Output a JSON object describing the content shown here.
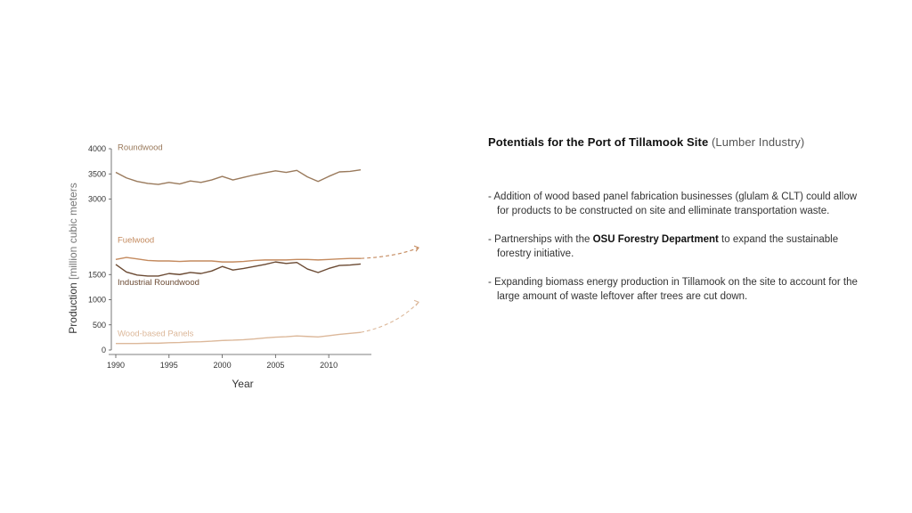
{
  "chart_data": {
    "type": "line",
    "title": "",
    "xlabel": "Year",
    "ylabel_main": "Production",
    "ylabel_unit": "[million cubic meters",
    "xlim": [
      1990,
      2013
    ],
    "ylim": [
      0,
      4000
    ],
    "x_ticks": [
      "1990",
      "1995",
      "2000",
      "2005",
      "2010"
    ],
    "y_ticks": [
      "0",
      "500",
      "1000",
      "1500",
      "3000",
      "3500",
      "4000"
    ],
    "grid": false,
    "x": [
      1990,
      1991,
      1992,
      1993,
      1994,
      1995,
      1996,
      1997,
      1998,
      1999,
      2000,
      2001,
      2002,
      2003,
      2004,
      2005,
      2006,
      2007,
      2008,
      2009,
      2010,
      2011,
      2012,
      2013
    ],
    "series": [
      {
        "name": "Roundwood",
        "color": "#9a7a5c",
        "values": [
          3530,
          3420,
          3350,
          3310,
          3290,
          3330,
          3300,
          3360,
          3330,
          3380,
          3450,
          3380,
          3430,
          3480,
          3520,
          3560,
          3530,
          3570,
          3440,
          3350,
          3450,
          3540,
          3550,
          3580
        ],
        "projection": false
      },
      {
        "name": "Fuelwood",
        "color": "#c48a5e",
        "values": [
          1800,
          1840,
          1810,
          1780,
          1770,
          1770,
          1760,
          1770,
          1770,
          1770,
          1750,
          1750,
          1760,
          1780,
          1790,
          1790,
          1790,
          1800,
          1800,
          1790,
          1800,
          1810,
          1820,
          1820
        ],
        "projection": true
      },
      {
        "name": "Industrial Roundwood",
        "color": "#6b4a33",
        "values": [
          1700,
          1550,
          1490,
          1470,
          1470,
          1520,
          1500,
          1540,
          1520,
          1570,
          1660,
          1590,
          1620,
          1660,
          1700,
          1750,
          1720,
          1740,
          1610,
          1540,
          1620,
          1680,
          1690,
          1710
        ],
        "projection": false
      },
      {
        "name": "Wood-based Panels",
        "color": "#dcb89a",
        "values": [
          130,
          130,
          130,
          135,
          135,
          145,
          150,
          160,
          165,
          175,
          190,
          195,
          205,
          220,
          240,
          255,
          265,
          280,
          270,
          260,
          285,
          310,
          330,
          350
        ],
        "projection": true
      }
    ]
  },
  "panel": {
    "heading_bold": "Potentials for the Port of Tillamook Site",
    "heading_muted": " (Lumber Industry)",
    "bullet1": "- Addition of wood based panel fabrication businesses (glulam & CLT) could allow for products to be constructed on site and elliminate transportation waste.",
    "bullet2_pre": "- Partnerships with the ",
    "bullet2_hl": "OSU Forestry Department",
    "bullet2_post": " to expand the sustainable forestry initiative.",
    "bullet3": "- Expanding biomass energy production in Tillamook on the site to account for the large amount of waste leftover after trees are cut down."
  }
}
